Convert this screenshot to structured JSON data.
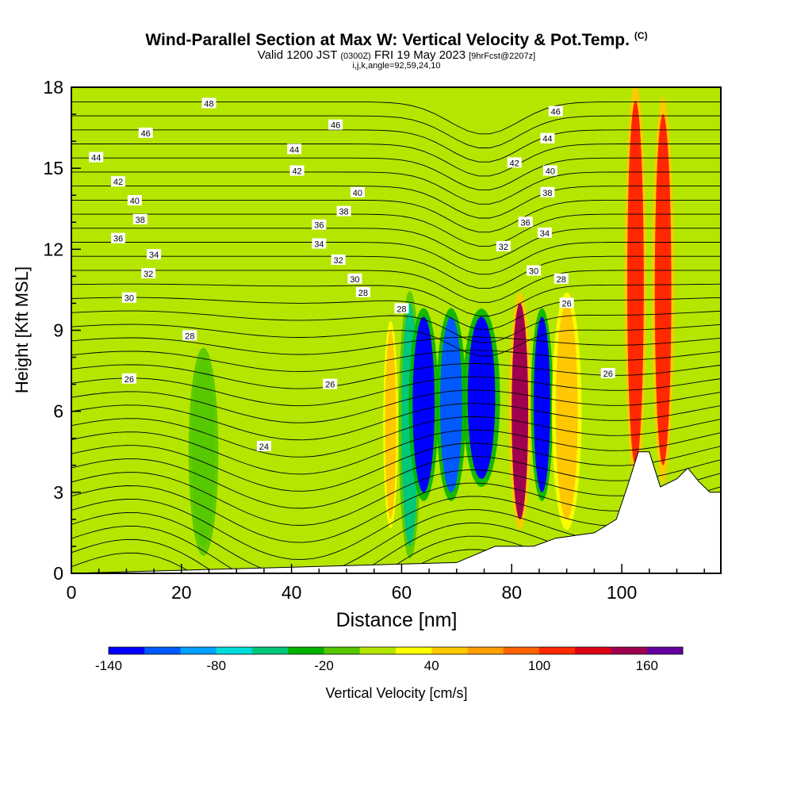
{
  "header": {
    "title": "Wind-Parallel Section at Max W: Vertical Velocity & Pot.Temp.",
    "copyright": "(C)",
    "valid_main": "Valid 1200 JST",
    "valid_utc": "(0300Z)",
    "valid_date": "FRI 19 May 2023",
    "forecast": "[9hrFcst@2207z]",
    "params": "i,j,k,angle=92,59,24,10"
  },
  "chart_data": {
    "type": "heatmap",
    "title": "Wind-Parallel Section at Max W: Vertical Velocity & Pot.Temp.",
    "xlabel": "Distance [nm]",
    "ylabel": "Height [Kft MSL]",
    "xlim": [
      0,
      118
    ],
    "ylim": [
      0,
      18
    ],
    "x_ticks": [
      "0",
      "20",
      "40",
      "60",
      "80",
      "100"
    ],
    "y_ticks": [
      "0",
      "3",
      "6",
      "9",
      "12",
      "15",
      "18"
    ],
    "colorbar": {
      "label": "Vertical Velocity [cm/s]",
      "ticks": [
        "-140",
        "-80",
        "-20",
        "40",
        "100",
        "160"
      ],
      "levels": [
        -140,
        -120,
        -100,
        -80,
        -60,
        -40,
        -20,
        0,
        20,
        40,
        60,
        80,
        100,
        120,
        140,
        160,
        180
      ],
      "colors": [
        "#0000ff",
        "#005aff",
        "#00a0ff",
        "#00dcdc",
        "#00c87a",
        "#00b400",
        "#55c800",
        "#b4e600",
        "#ffff00",
        "#ffc800",
        "#ffa000",
        "#ff6400",
        "#ff2800",
        "#dc0014",
        "#a00050",
        "#6400a0"
      ]
    },
    "terrain_color": "#ffffff",
    "velocity_cells": [
      {
        "x0": 60,
        "x1": 63,
        "y0": 1,
        "y1": 10,
        "w": -50
      },
      {
        "x0": 62,
        "x1": 66,
        "y0": 3,
        "y1": 9.5,
        "w": -130
      },
      {
        "x0": 67,
        "x1": 71,
        "y0": 3,
        "y1": 9.5,
        "w": -110
      },
      {
        "x0": 72,
        "x1": 77,
        "y0": 3.5,
        "y1": 9.5,
        "w": -140
      },
      {
        "x0": 80,
        "x1": 83,
        "y0": 2,
        "y1": 10,
        "w": 140
      },
      {
        "x0": 84,
        "x1": 87,
        "y0": 3,
        "y1": 9.5,
        "w": -140
      },
      {
        "x0": 88,
        "x1": 92,
        "y0": 2,
        "y1": 10,
        "w": 40
      },
      {
        "x0": 101,
        "x1": 104,
        "y0": 4,
        "y1": 17.5,
        "w": 100
      },
      {
        "x0": 106,
        "x1": 109,
        "y0": 4,
        "y1": 17,
        "w": 100
      },
      {
        "x0": 57,
        "x1": 59,
        "y0": 2,
        "y1": 9,
        "w": 40
      },
      {
        "x0": 22,
        "x1": 26,
        "y0": 1,
        "y1": 8,
        "w": -20
      }
    ],
    "terrain": [
      [
        0,
        0
      ],
      [
        70,
        0.4
      ],
      [
        77,
        1
      ],
      [
        84,
        1
      ],
      [
        88,
        1.3
      ],
      [
        95,
        1.5
      ],
      [
        99,
        2
      ],
      [
        101,
        3.2
      ],
      [
        103,
        4.5
      ],
      [
        105,
        4.5
      ],
      [
        107,
        3.2
      ],
      [
        110,
        3.5
      ],
      [
        112,
        3.9
      ],
      [
        114,
        3.4
      ],
      [
        116,
        3
      ],
      [
        118,
        3
      ]
    ],
    "theta_labels": [
      {
        "value": "48",
        "x": 25,
        "y": 17.4
      },
      {
        "value": "46",
        "x": 13.5,
        "y": 16.3
      },
      {
        "value": "46",
        "x": 48,
        "y": 16.6
      },
      {
        "value": "46",
        "x": 88,
        "y": 17.1
      },
      {
        "value": "44",
        "x": 4.5,
        "y": 15.4
      },
      {
        "value": "44",
        "x": 40.5,
        "y": 15.7
      },
      {
        "value": "44",
        "x": 86.5,
        "y": 16.1
      },
      {
        "value": "42",
        "x": 8.5,
        "y": 14.5
      },
      {
        "value": "42",
        "x": 41,
        "y": 14.9
      },
      {
        "value": "42",
        "x": 80.5,
        "y": 15.2
      },
      {
        "value": "40",
        "x": 11.5,
        "y": 13.8
      },
      {
        "value": "40",
        "x": 52,
        "y": 14.1
      },
      {
        "value": "40",
        "x": 87,
        "y": 14.9
      },
      {
        "value": "38",
        "x": 12.5,
        "y": 13.1
      },
      {
        "value": "38",
        "x": 49.5,
        "y": 13.4
      },
      {
        "value": "38",
        "x": 86.5,
        "y": 14.1
      },
      {
        "value": "36",
        "x": 8.5,
        "y": 12.4
      },
      {
        "value": "36",
        "x": 45,
        "y": 12.9
      },
      {
        "value": "36",
        "x": 82.5,
        "y": 13.0
      },
      {
        "value": "34",
        "x": 15,
        "y": 11.8
      },
      {
        "value": "34",
        "x": 45,
        "y": 12.2
      },
      {
        "value": "34",
        "x": 86,
        "y": 12.6
      },
      {
        "value": "32",
        "x": 14,
        "y": 11.1
      },
      {
        "value": "32",
        "x": 48.5,
        "y": 11.6
      },
      {
        "value": "32",
        "x": 78.5,
        "y": 12.1
      },
      {
        "value": "30",
        "x": 10.5,
        "y": 10.2
      },
      {
        "value": "30",
        "x": 51.5,
        "y": 10.9
      },
      {
        "value": "30",
        "x": 84,
        "y": 11.2
      },
      {
        "value": "28",
        "x": 53,
        "y": 10.4
      },
      {
        "value": "28",
        "x": 60,
        "y": 9.8
      },
      {
        "value": "28",
        "x": 89,
        "y": 10.9
      },
      {
        "value": "28",
        "x": 21.5,
        "y": 8.8
      },
      {
        "value": "26",
        "x": 10.5,
        "y": 7.2
      },
      {
        "value": "26",
        "x": 47,
        "y": 7.0
      },
      {
        "value": "26",
        "x": 90,
        "y": 10.0
      },
      {
        "value": "26",
        "x": 97.5,
        "y": 7.4
      },
      {
        "value": "24",
        "x": 35,
        "y": 4.7
      }
    ]
  }
}
